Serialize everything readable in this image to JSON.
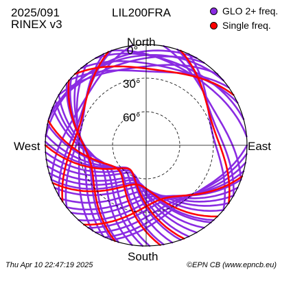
{
  "header": {
    "date": "2025/091",
    "rinex": "RINEX v3",
    "station": "LIL200FRA"
  },
  "legend": [
    {
      "label": "GLO 2+ freq.",
      "color": "#8a2be2"
    },
    {
      "label": "Single freq.",
      "color": "#ff0000"
    }
  ],
  "directions": {
    "north": "North",
    "south": "South",
    "west": "West",
    "east": "East"
  },
  "footer": {
    "timestamp": "Thu Apr 10 22:47:19 2025",
    "credit": "©EPN CB (www.epncb.eu)"
  },
  "chart_data": {
    "type": "scatter",
    "projection": "polar skyplot",
    "radial_axis": "elevation",
    "elevation_rings": [
      0,
      30,
      60
    ],
    "elevation_ring_labels": [
      "0°",
      "30°",
      "60°"
    ],
    "grid": true,
    "legend_position": "top-right",
    "series": [
      {
        "name": "GLO 2+ freq.",
        "color": "#8a2be2",
        "tracks": [
          {
            "az_start": 105,
            "az_end": 215,
            "max_el": 38
          },
          {
            "az_start": 100,
            "az_end": 210,
            "max_el": 34
          },
          {
            "az_start": 110,
            "az_end": 222,
            "max_el": 42
          },
          {
            "az_start": 120,
            "az_end": 232,
            "max_el": 46
          },
          {
            "az_start": 130,
            "az_end": 245,
            "max_el": 52
          },
          {
            "az_start": 125,
            "az_end": 238,
            "max_el": 49
          },
          {
            "az_start": 138,
            "az_end": 250,
            "max_el": 55
          },
          {
            "az_start": 150,
            "az_end": 262,
            "max_el": 62
          },
          {
            "az_start": 145,
            "az_end": 258,
            "max_el": 58
          },
          {
            "az_start": 160,
            "az_end": 272,
            "max_el": 64
          },
          {
            "az_start": 170,
            "az_end": 282,
            "max_el": 58
          },
          {
            "az_start": 165,
            "az_end": 276,
            "max_el": 61
          },
          {
            "az_start": 178,
            "az_end": 292,
            "max_el": 52
          },
          {
            "az_start": 188,
            "az_end": 300,
            "max_el": 46
          },
          {
            "az_start": 196,
            "az_end": 308,
            "max_el": 40
          },
          {
            "az_start": 205,
            "az_end": 318,
            "max_el": 34
          },
          {
            "az_start": 200,
            "az_end": 312,
            "max_el": 37
          },
          {
            "az_start": 212,
            "az_end": 324,
            "max_el": 30
          },
          {
            "az_start": 90,
            "az_end": 200,
            "max_el": 30
          },
          {
            "az_start": 95,
            "az_end": 204,
            "max_el": 32
          },
          {
            "az_start": 300,
            "az_end": 45,
            "max_el": 20
          },
          {
            "az_start": 310,
            "az_end": 55,
            "max_el": 24
          },
          {
            "az_start": 320,
            "az_end": 65,
            "max_el": 18
          },
          {
            "az_start": 290,
            "az_end": 35,
            "max_el": 14
          },
          {
            "az_start": 285,
            "az_end": 50,
            "max_el": 10
          },
          {
            "az_start": 330,
            "az_end": 75,
            "max_el": 12
          },
          {
            "az_start": 275,
            "az_end": 30,
            "max_el": 8
          },
          {
            "az_start": 340,
            "az_end": 85,
            "max_el": 15
          },
          {
            "az_start": 18,
            "az_end": 120,
            "max_el": 26
          },
          {
            "az_start": 25,
            "az_end": 130,
            "max_el": 30
          },
          {
            "az_start": 240,
            "az_end": 340,
            "max_el": 26
          },
          {
            "az_start": 232,
            "az_end": 335,
            "max_el": 30
          },
          {
            "az_start": 250,
            "az_end": 352,
            "max_el": 22
          },
          {
            "az_start": 10,
            "az_end": 110,
            "max_el": 22
          },
          {
            "az_start": 115,
            "az_end": 228,
            "max_el": 44
          },
          {
            "az_start": 182,
            "az_end": 296,
            "max_el": 49
          },
          {
            "az_start": 155,
            "az_end": 266,
            "max_el": 63
          },
          {
            "az_start": 140,
            "az_end": 254,
            "max_el": 57
          }
        ]
      },
      {
        "name": "Single freq.",
        "color": "#ff0000",
        "tracks": [
          {
            "az_start": 108,
            "az_end": 218,
            "max_el": 40
          },
          {
            "az_start": 135,
            "az_end": 248,
            "max_el": 54
          },
          {
            "az_start": 172,
            "az_end": 284,
            "max_el": 57
          },
          {
            "az_start": 198,
            "az_end": 310,
            "max_el": 38
          },
          {
            "az_start": 315,
            "az_end": 60,
            "max_el": 22
          },
          {
            "az_start": 20,
            "az_end": 125,
            "max_el": 28
          },
          {
            "az_start": 236,
            "az_end": 338,
            "max_el": 28
          },
          {
            "az_start": 158,
            "az_end": 270,
            "max_el": 64
          }
        ]
      }
    ]
  }
}
